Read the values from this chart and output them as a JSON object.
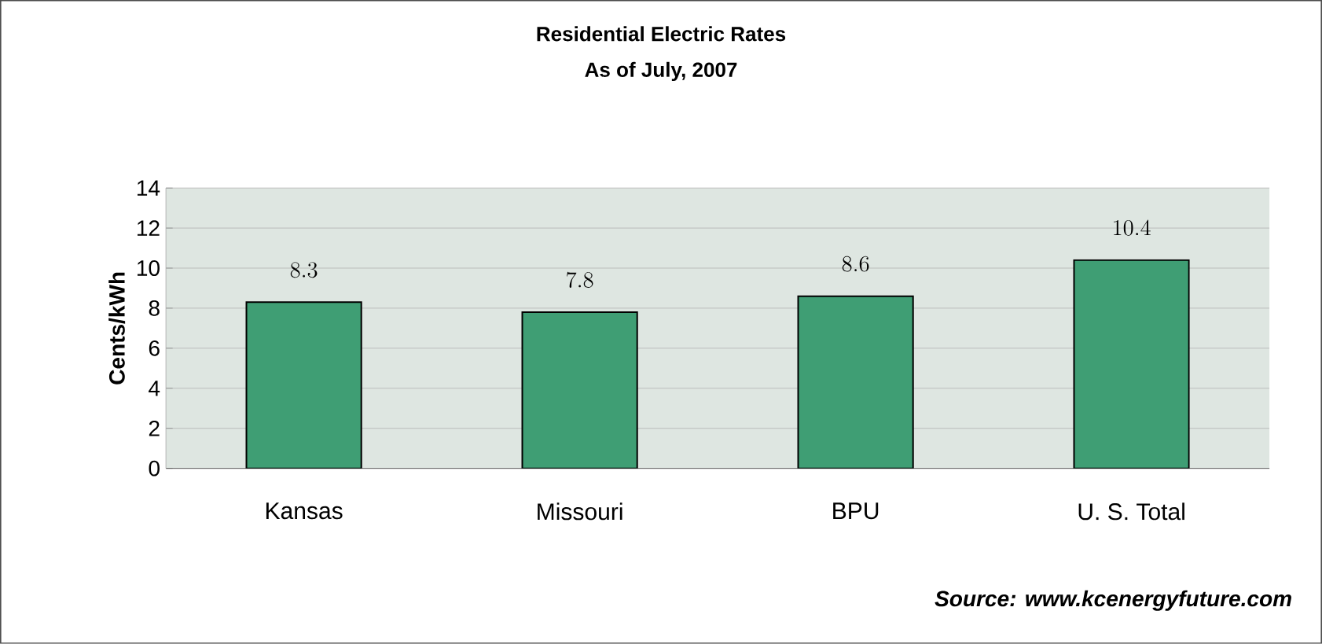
{
  "chart_data": {
    "type": "bar",
    "title": "Residential Electric Rates",
    "subtitle": "As of July, 2007",
    "ylabel": "Cents/kWh",
    "categories": [
      "Kansas",
      "Missouri",
      "BPU",
      "U. S. Total"
    ],
    "values": [
      8.3,
      7.8,
      8.6,
      10.4
    ],
    "color": "#3f9e74",
    "ylim": [
      0,
      14
    ],
    "yticks": [
      0,
      2,
      4,
      6,
      8,
      10,
      12,
      14
    ],
    "grid": "y",
    "data_labels": true,
    "annotations": [
      "Source: www.kcenergyfuture.com"
    ]
  }
}
